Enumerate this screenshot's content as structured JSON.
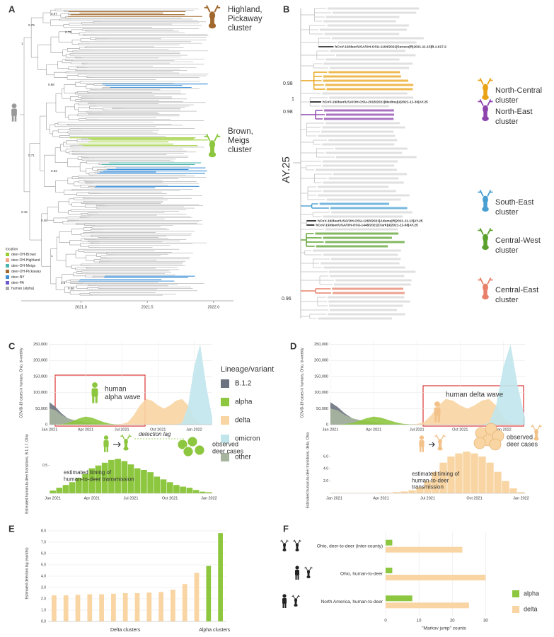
{
  "panel_labels": [
    "A",
    "B",
    "C",
    "D",
    "E",
    "F"
  ],
  "tree_a": {
    "xlim": [
      2020.55,
      2022.15
    ],
    "xticks": [
      {
        "value": 2021,
        "label": "2021.0"
      },
      {
        "value": 2021.5,
        "label": "2021.5"
      },
      {
        "value": 2022,
        "label": "2022.0"
      }
    ],
    "node_labels": [
      "0.97",
      "0.79",
      "1",
      "0.75",
      "0.88",
      "0.71",
      "0.92",
      "0.46",
      "0.48",
      "1",
      "0.6",
      "0.56"
    ],
    "clusters": [
      [
        "Highland,",
        "Pickaway",
        "cluster"
      ],
      [
        "Brown,",
        "Meigs",
        "cluster"
      ]
    ],
    "legend_title": "location",
    "legend": [
      {
        "name": "deer-OH-Brown",
        "color": "#9acd32"
      },
      {
        "name": "deer-OH-Highland",
        "color": "#f4a582"
      },
      {
        "name": "deer-OH-Meigs",
        "color": "#4db6ac"
      },
      {
        "name": "deer-OH-Pickaway",
        "color": "#a0682e"
      },
      {
        "name": "deer-NY",
        "color": "#3d8fd6"
      },
      {
        "name": "deer-PA",
        "color": "#6a5acd"
      },
      {
        "name": "human (alpha)",
        "color": "#aaaaaa"
      }
    ]
  },
  "tree_b": {
    "lineage_label": "AY.25",
    "node_labels": [
      "1",
      "0.98",
      "0.98",
      "0.96"
    ],
    "clusters": [
      {
        "label": [
          "North-Central",
          "cluster"
        ],
        "color": "#e8a317"
      },
      {
        "label": [
          "North-East",
          "cluster"
        ],
        "color": "#8e44ad"
      },
      {
        "label": [
          "South-East",
          "cluster"
        ],
        "color": "#4a9fd1"
      },
      {
        "label": [
          "Central-West",
          "cluster"
        ],
        "color": "#5aa02c"
      },
      {
        "label": [
          "Central-East",
          "cluster"
        ],
        "color": "#e8806a"
      }
    ],
    "tips": [
      "hCoV-19/deer/USA/OH-OSU-1104/2021|Seneca|R|2021-11-15|B.1.617.2",
      "hCoV-19/deer/USA/OH-OSU-2018/2021|Medina|U|2021-11-30|AY.25",
      "hCoV-19/deer/USA/OH-OSU-1263/2021|Adams|R|2021-11-13|AY.25",
      "hCoV-19/deer/USA/OH-OSU-1448/2021|Clark|U|2021-11-08|AY.25"
    ]
  },
  "chart_data": [
    {
      "type": "area",
      "categories": [
        "Jan 2021",
        null,
        null,
        null,
        null,
        null,
        "Apr 2021",
        null,
        null,
        null,
        null,
        null,
        "Jul 2021",
        null,
        null,
        null,
        null,
        null,
        "Oct 2021",
        null,
        null,
        null,
        null,
        null,
        "Jan 2022",
        null,
        null,
        null
      ],
      "series": [
        {
          "name": "B.1.2",
          "color": "#6b7280",
          "values": [
            70000,
            55000,
            35000,
            20000,
            12000,
            8000,
            5000,
            3000,
            1500,
            500,
            0,
            0,
            0,
            0,
            0,
            0,
            0,
            0,
            0,
            0,
            0,
            0,
            0,
            0,
            0,
            0,
            0,
            0
          ]
        },
        {
          "name": "alpha",
          "color": "#8dc63f",
          "values": [
            0,
            0,
            2000,
            5000,
            12000,
            20000,
            25000,
            22000,
            15000,
            8000,
            3000,
            1000,
            0,
            0,
            0,
            0,
            0,
            0,
            0,
            0,
            0,
            0,
            0,
            0,
            0,
            0,
            0,
            0
          ]
        },
        {
          "name": "delta",
          "color": "#f8d5a3",
          "values": [
            0,
            0,
            0,
            0,
            0,
            0,
            0,
            0,
            0,
            0,
            0,
            1000,
            2000,
            8000,
            30000,
            60000,
            80000,
            75000,
            60000,
            50000,
            60000,
            75000,
            80000,
            60000,
            20000,
            5000,
            0,
            0
          ]
        },
        {
          "name": "omicron",
          "color": "#c0e6ec",
          "values": [
            0,
            0,
            0,
            0,
            0,
            0,
            0,
            0,
            0,
            0,
            0,
            0,
            0,
            0,
            0,
            0,
            0,
            0,
            0,
            0,
            0,
            0,
            5000,
            60000,
            180000,
            250000,
            120000,
            20000
          ]
        },
        {
          "name": "other",
          "color": "#a7b5a0",
          "values": [
            50000,
            45000,
            30000,
            20000,
            15000,
            12000,
            8000,
            5000,
            3000,
            1500,
            500,
            0,
            0,
            0,
            0,
            0,
            0,
            0,
            0,
            0,
            0,
            0,
            0,
            0,
            0,
            0,
            0,
            0
          ]
        }
      ],
      "ylim": [
        0,
        260000
      ],
      "yticks": [
        0,
        {
          "value": 50000,
          "label": "50,000"
        },
        {
          "value": 100000,
          "label": "100,000"
        },
        {
          "value": 150000,
          "label": "150,000"
        },
        {
          "value": 200000,
          "label": "200,000"
        },
        {
          "value": 250000,
          "label": "250,000"
        }
      ],
      "ylabel": "COVID-19 cases in humans, Ohio, bi-weekly",
      "legend_title": "Lineage/variant",
      "grid": true,
      "annotations": [
        [
          "human",
          "alpha wave"
        ]
      ]
    },
    {
      "type": "bar",
      "categories": [
        "Jan 2021",
        null,
        null,
        null,
        null,
        null,
        "Apr 2021",
        null,
        null,
        null,
        null,
        null,
        "Jul 2021",
        null,
        null,
        null,
        null,
        null,
        "Oct 2021",
        null,
        null,
        null,
        null,
        null,
        "Jan 2022"
      ],
      "values": [
        0.05,
        0.1,
        0.15,
        0.2,
        0.28,
        0.35,
        0.45,
        0.5,
        0.55,
        0.6,
        0.62,
        0.58,
        0.52,
        0.45,
        0.42,
        0.38,
        0.3,
        0.25,
        0.2,
        0.15,
        0.12,
        0.1,
        0.06,
        0.03,
        0.02
      ],
      "color": "#8dc63f",
      "ylim": [
        0,
        0.7
      ],
      "yticks": [
        0.5
      ],
      "ylabel": "Estimated human-to-deer transitions, B.1.1.7, Ohio",
      "annotations": [
        [
          "detection lag"
        ],
        [
          "observed",
          "deer cases"
        ],
        [
          "estimated timing of",
          "human-to-deer transmission"
        ]
      ]
    },
    {
      "type": "area",
      "categories": [
        "Jan 2021",
        null,
        null,
        null,
        null,
        null,
        "Apr 2021",
        null,
        null,
        null,
        null,
        null,
        "Jul 2021",
        null,
        null,
        null,
        null,
        null,
        "Oct 2021",
        null,
        null,
        null,
        null,
        null,
        "Jan 2022",
        null,
        null,
        null
      ],
      "series": [
        {
          "color": "#6b7280",
          "values": [
            70000,
            55000,
            35000,
            20000,
            12000,
            8000,
            5000,
            3000,
            1500,
            500,
            0,
            0,
            0,
            0,
            0,
            0,
            0,
            0,
            0,
            0,
            0,
            0,
            0,
            0,
            0,
            0,
            0,
            0
          ]
        },
        {
          "color": "#8dc63f",
          "values": [
            0,
            0,
            2000,
            5000,
            12000,
            20000,
            25000,
            22000,
            15000,
            8000,
            3000,
            1000,
            0,
            0,
            0,
            0,
            0,
            0,
            0,
            0,
            0,
            0,
            0,
            0,
            0,
            0,
            0,
            0
          ]
        },
        {
          "color": "#f8d5a3",
          "values": [
            0,
            0,
            0,
            0,
            0,
            0,
            0,
            0,
            0,
            0,
            0,
            1000,
            2000,
            8000,
            30000,
            60000,
            80000,
            75000,
            60000,
            50000,
            60000,
            75000,
            80000,
            60000,
            20000,
            5000,
            0,
            0
          ]
        },
        {
          "color": "#c0e6ec",
          "values": [
            0,
            0,
            0,
            0,
            0,
            0,
            0,
            0,
            0,
            0,
            0,
            0,
            0,
            0,
            0,
            0,
            0,
            0,
            0,
            0,
            0,
            0,
            5000,
            60000,
            180000,
            250000,
            120000,
            20000
          ]
        },
        {
          "color": "#a7b5a0",
          "values": [
            50000,
            45000,
            30000,
            20000,
            15000,
            12000,
            8000,
            5000,
            3000,
            1500,
            500,
            0,
            0,
            0,
            0,
            0,
            0,
            0,
            0,
            0,
            0,
            0,
            0,
            0,
            0,
            0,
            0,
            0
          ]
        }
      ],
      "ylim": [
        0,
        260000
      ],
      "yticks": [
        0,
        {
          "value": 50000,
          "label": "50,000"
        },
        {
          "value": 100000,
          "label": "100,000"
        },
        {
          "value": 150000,
          "label": "150,000"
        },
        {
          "value": 200000,
          "label": "200,000"
        },
        {
          "value": 250000,
          "label": "250,000"
        }
      ],
      "ylabel": "COVID-19 cases in humans, Ohio, bi-weekly",
      "grid": true,
      "annotations": [
        [
          "human delta wave"
        ]
      ]
    },
    {
      "type": "bar",
      "categories": [
        "Jan 2021",
        null,
        null,
        null,
        null,
        null,
        "Apr 2021",
        null,
        null,
        null,
        null,
        null,
        "Jul 2021",
        null,
        null,
        null,
        null,
        null,
        "Oct 2021",
        null,
        null,
        null,
        null,
        null,
        "Jan 2022"
      ],
      "values": [
        0.05,
        0.05,
        0.05,
        0.05,
        0.05,
        0.05,
        0.1,
        0.1,
        0.2,
        0.3,
        0.5,
        1.0,
        2.0,
        3.5,
        5.0,
        6.0,
        6.5,
        6.8,
        6.5,
        6.0,
        5.0,
        3.5,
        2.0,
        0.8,
        0.2
      ],
      "color": "#f8d5a3",
      "ylim": [
        0,
        7.5
      ],
      "yticks": [
        {
          "value": 2,
          "label": "2.0"
        },
        {
          "value": 4,
          "label": "4.0"
        },
        {
          "value": 6,
          "label": "6.0"
        }
      ],
      "ylabel": "Estimated human-to-deer transitions, delta, Ohio",
      "annotations": [
        [
          "observed",
          "deer cases"
        ],
        [
          "estimated timing of",
          "human-to-deer",
          "transmission"
        ]
      ]
    },
    {
      "type": "bar",
      "categories": [
        null,
        null,
        null,
        null,
        null,
        null,
        null,
        null,
        null,
        null,
        null,
        null,
        null,
        null,
        null
      ],
      "series": [
        {
          "name": "Delta clusters",
          "color": "#f8d5a3",
          "values": [
            2.3,
            2.3,
            2.35,
            2.4,
            2.4,
            2.45,
            2.5,
            2.5,
            2.55,
            2.6,
            2.8,
            3.3,
            4.3,
            null,
            null
          ]
        },
        {
          "name": "Alpha clusters",
          "color": "#8dc63f",
          "values": [
            null,
            null,
            null,
            null,
            null,
            null,
            null,
            null,
            null,
            null,
            null,
            null,
            null,
            4.9,
            7.8
          ]
        }
      ],
      "ylim": [
        0,
        8.5
      ],
      "yticks": [
        {
          "value": 0,
          "label": "0.0"
        },
        {
          "value": 1,
          "label": "1.0"
        },
        {
          "value": 2,
          "label": "2.0"
        },
        {
          "value": 3,
          "label": "3.0"
        },
        {
          "value": 4,
          "label": "4.0"
        },
        {
          "value": 5,
          "label": "5.0"
        },
        {
          "value": 6,
          "label": "6.0"
        },
        {
          "value": 7,
          "label": "7.0"
        },
        {
          "value": 8,
          "label": "8.0"
        }
      ],
      "ylabel": "Estimated detection lag (months)",
      "grid": true
    },
    {
      "type": "hbar",
      "categories": [
        "Ohio, deer-to-deer (inter-county)",
        "Ohio, human-to-deer",
        "North America, human-to-deer"
      ],
      "series": [
        {
          "name": "alpha",
          "color": "#8dc63f",
          "values": [
            2,
            2,
            8
          ]
        },
        {
          "name": "delta",
          "color": "#f8d5a3",
          "values": [
            23,
            30,
            25
          ]
        }
      ],
      "xlim": [
        0,
        35
      ],
      "xticks": [
        0,
        10,
        20,
        30
      ],
      "xlabel": "\"Markov jump\" counts",
      "grid": true,
      "legend": "right"
    }
  ]
}
